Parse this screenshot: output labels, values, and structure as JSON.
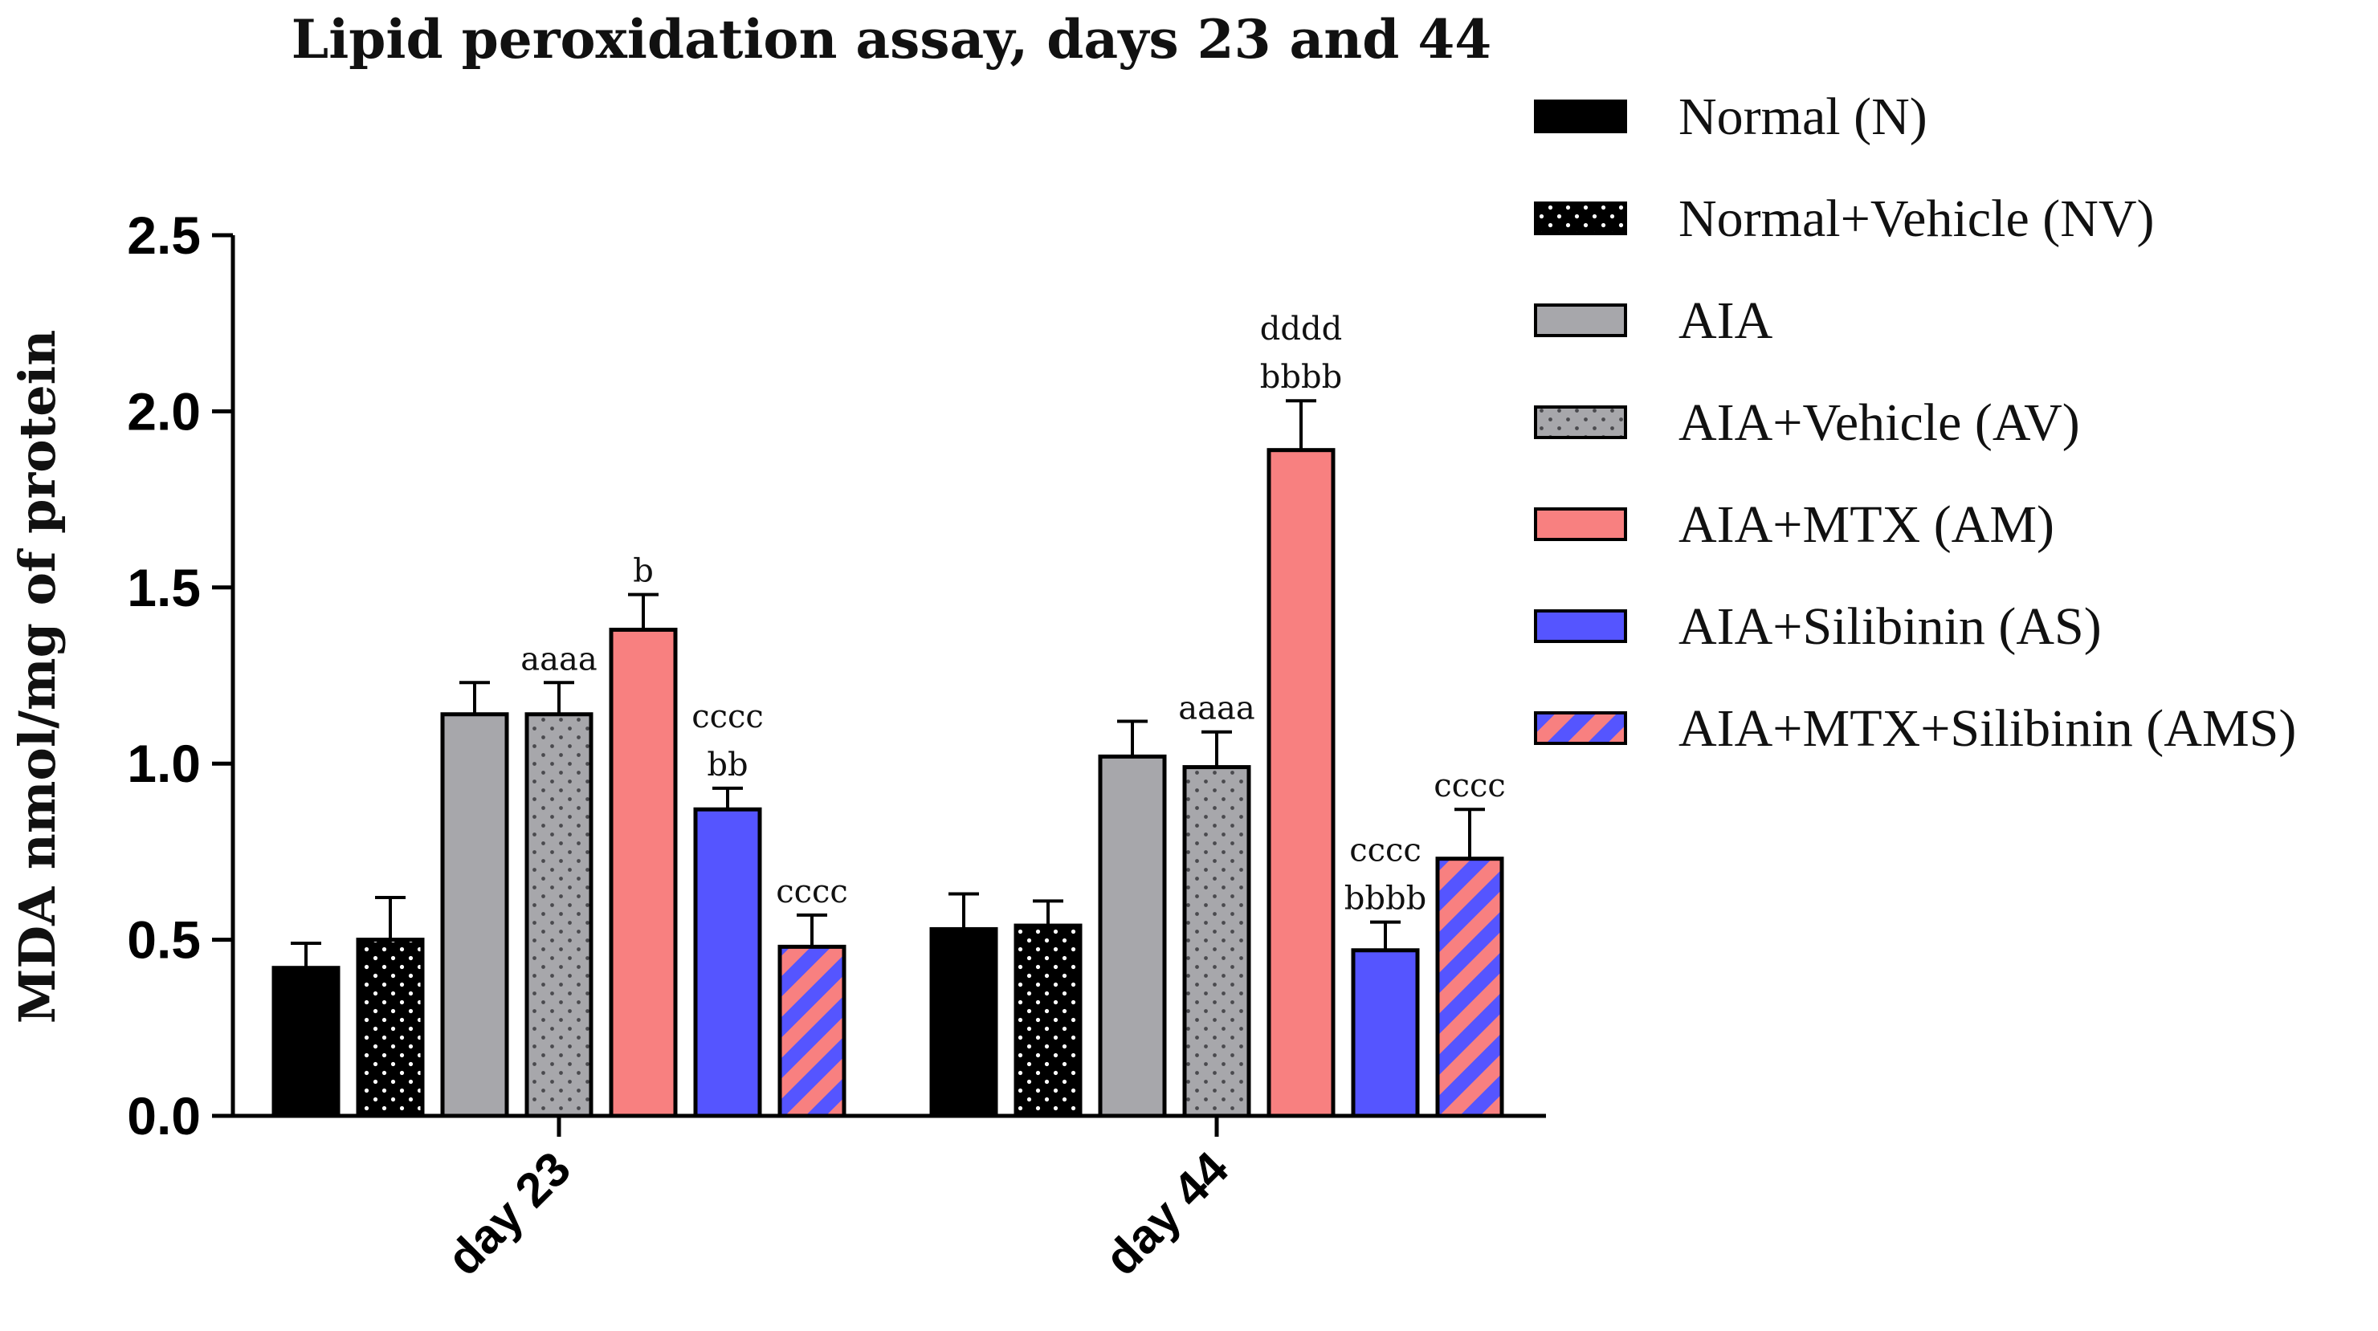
{
  "chart_data": {
    "type": "bar",
    "title": "Lipid peroxidation assay, days 23 and 44",
    "xlabel": "",
    "ylabel": "MDA nmol/mg of protein",
    "ylim": [
      0,
      2.5
    ],
    "yticks": [
      "0.0",
      "0.5",
      "1.0",
      "1.5",
      "2.0",
      "2.5"
    ],
    "categories": [
      "day 23",
      "day 44"
    ],
    "legend_position": "right",
    "grid": false,
    "series": [
      {
        "name": "Normal (N)",
        "color": "#000000",
        "pattern": "solid",
        "values": [
          0.42,
          0.53
        ],
        "errors": [
          0.07,
          0.1
        ],
        "annotations": [
          [],
          []
        ]
      },
      {
        "name": "Normal+Vehicle (NV)",
        "color": "#000000",
        "pattern": "dots-white",
        "values": [
          0.5,
          0.54
        ],
        "errors": [
          0.12,
          0.07
        ],
        "annotations": [
          [],
          []
        ]
      },
      {
        "name": "AIA",
        "color": "#a7a7ab",
        "pattern": "solid",
        "values": [
          1.14,
          1.02
        ],
        "errors": [
          0.09,
          0.1
        ],
        "annotations": [
          [],
          []
        ]
      },
      {
        "name": "AIA+Vehicle (AV)",
        "color": "#a7a7ab",
        "pattern": "dots-dark",
        "values": [
          1.14,
          0.99
        ],
        "errors": [
          0.09,
          0.1
        ],
        "annotations": [
          [
            "aaaa"
          ],
          [
            "aaaa"
          ]
        ]
      },
      {
        "name": "AIA+MTX (AM)",
        "color": "#f88080",
        "pattern": "solid",
        "values": [
          1.38,
          1.89
        ],
        "errors": [
          0.1,
          0.14
        ],
        "annotations": [
          [
            "b"
          ],
          [
            "dddd",
            "bbbb"
          ]
        ]
      },
      {
        "name": "AIA+Silibinin (AS)",
        "color": "#5555ff",
        "pattern": "solid",
        "values": [
          0.87,
          0.47
        ],
        "errors": [
          0.06,
          0.08
        ],
        "annotations": [
          [
            "cccc",
            "bb"
          ],
          [
            "cccc",
            "bbbb"
          ]
        ]
      },
      {
        "name": "AIA+MTX+Silibinin (AMS)",
        "color": "#5555ff",
        "color2": "#f88080",
        "pattern": "stripes",
        "values": [
          0.48,
          0.73
        ],
        "errors": [
          0.09,
          0.14
        ],
        "annotations": [
          [
            "cccc"
          ],
          [
            "cccc"
          ]
        ]
      }
    ]
  }
}
